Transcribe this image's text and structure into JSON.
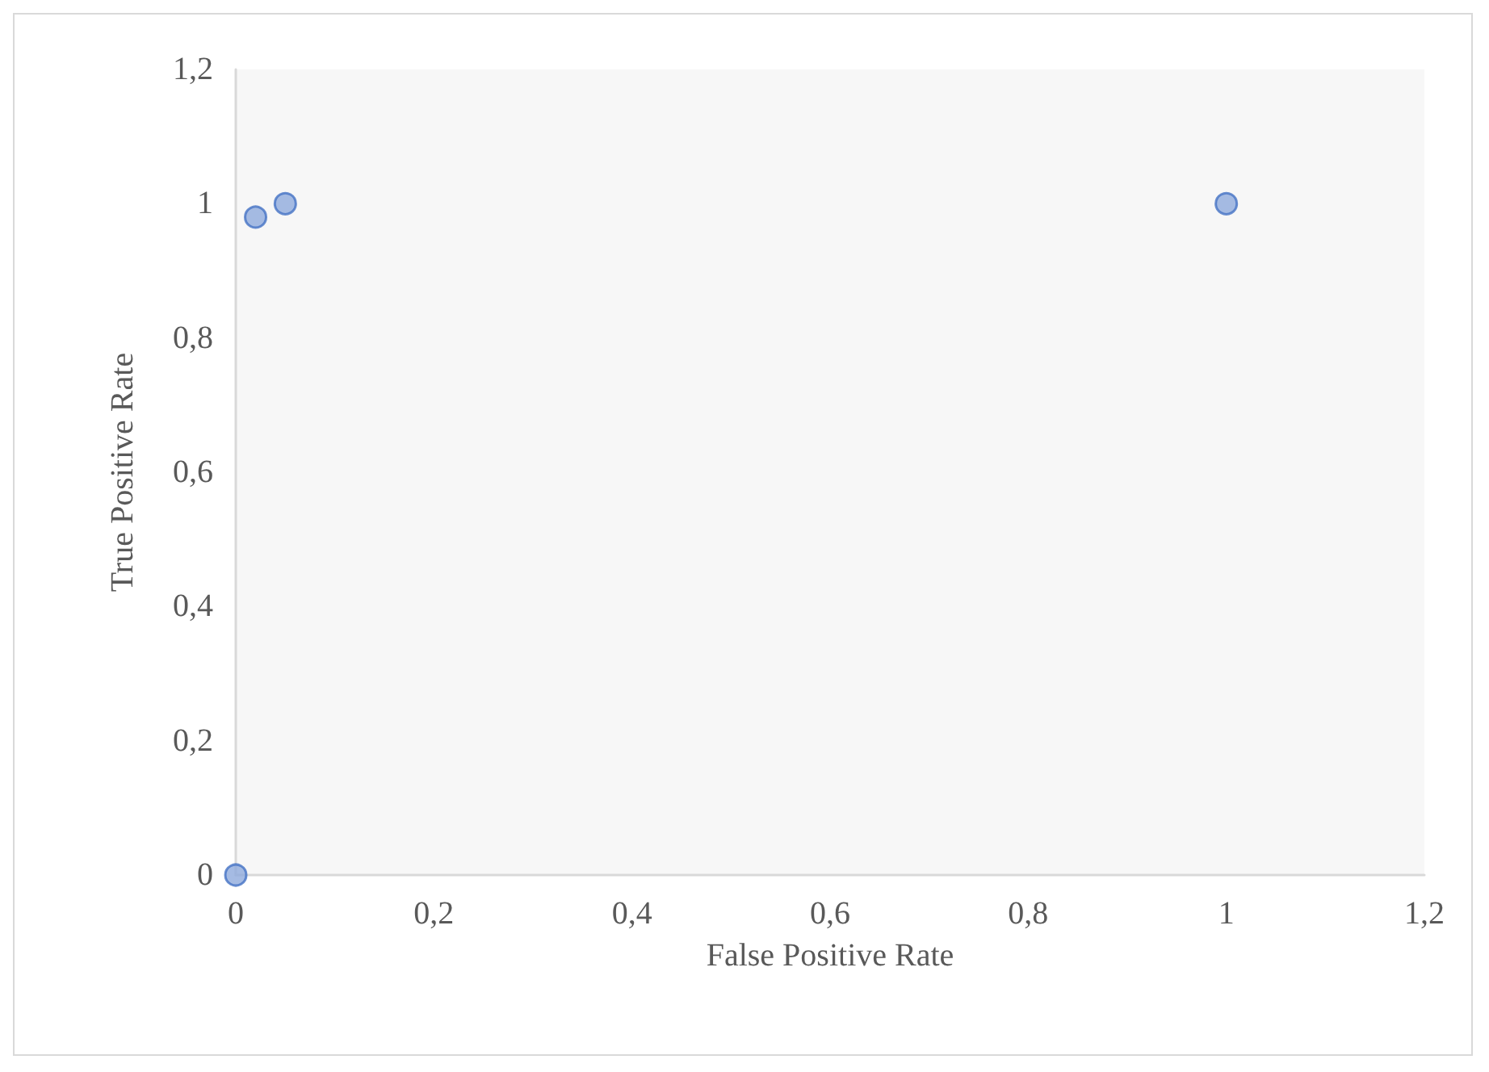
{
  "chart_data": {
    "type": "scatter",
    "xlabel": "False Positive Rate",
    "ylabel": "True Positive Rate",
    "x": [
      0,
      0.02,
      0.05,
      1
    ],
    "series": [
      {
        "color": "#8faadc",
        "values": [
          0,
          0.98,
          1,
          1
        ]
      }
    ],
    "xlim": [
      0,
      1.2
    ],
    "ylim": [
      0,
      1.2
    ],
    "xticks": [
      {
        "value": 0,
        "label": "0"
      },
      {
        "value": 0.2,
        "label": "0,2"
      },
      {
        "value": 0.4,
        "label": "0,4"
      },
      {
        "value": 0.6,
        "label": "0,6"
      },
      {
        "value": 0.8,
        "label": "0,8"
      },
      {
        "value": 1,
        "label": "1"
      },
      {
        "value": 1.2,
        "label": "1,2"
      }
    ],
    "yticks": [
      {
        "value": 0,
        "label": "0"
      },
      {
        "value": 0.2,
        "label": "0,2"
      },
      {
        "value": 0.4,
        "label": "0,4"
      },
      {
        "value": 0.6,
        "label": "0,6"
      },
      {
        "value": 0.8,
        "label": "0,8"
      },
      {
        "value": 1,
        "label": "1"
      },
      {
        "value": 1.2,
        "label": "1,2"
      }
    ],
    "grid": false,
    "marker": "circle"
  }
}
